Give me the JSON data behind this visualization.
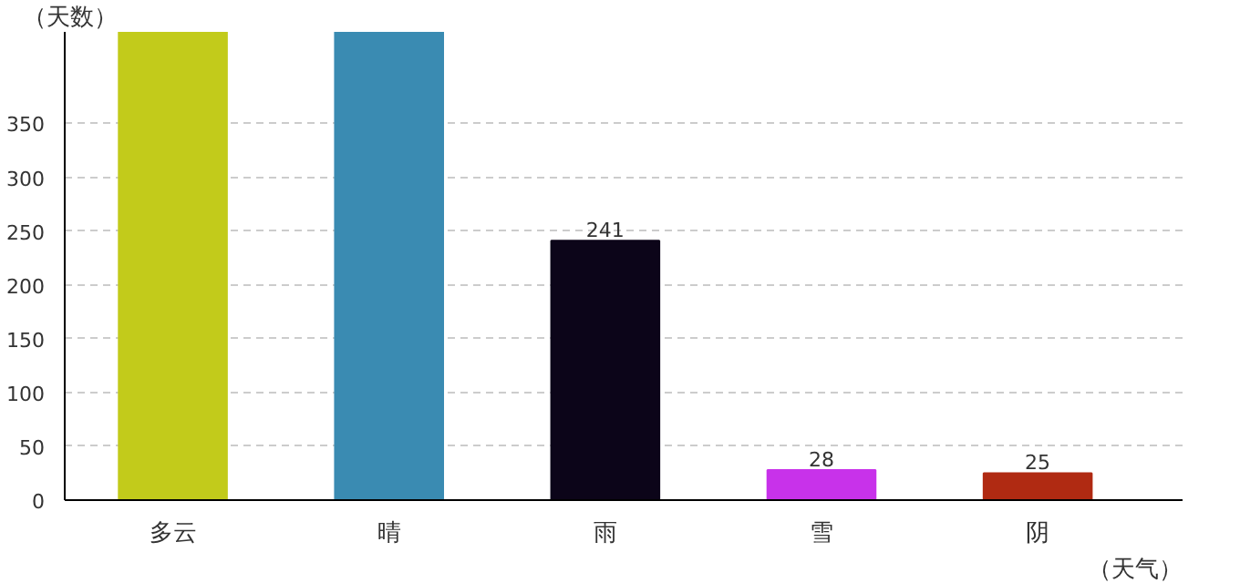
{
  "chart_data": {
    "type": "bar",
    "xlabel": "（天气）",
    "ylabel": "（天数）",
    "categories": [
      "多云",
      "晴",
      "雨",
      "雪",
      "阴"
    ],
    "values": [
      435,
      435,
      241,
      28,
      25
    ],
    "colors": [
      "#c2cb1b",
      "#3a8bb2",
      "#0c0519",
      "#c832ea",
      "#b02a12"
    ],
    "value_labels": [
      null,
      null,
      "241",
      "28",
      "25"
    ],
    "ylim": [
      0,
      435
    ],
    "yticks": [
      0,
      50,
      100,
      150,
      200,
      250,
      300,
      350
    ],
    "grid": "y"
  }
}
